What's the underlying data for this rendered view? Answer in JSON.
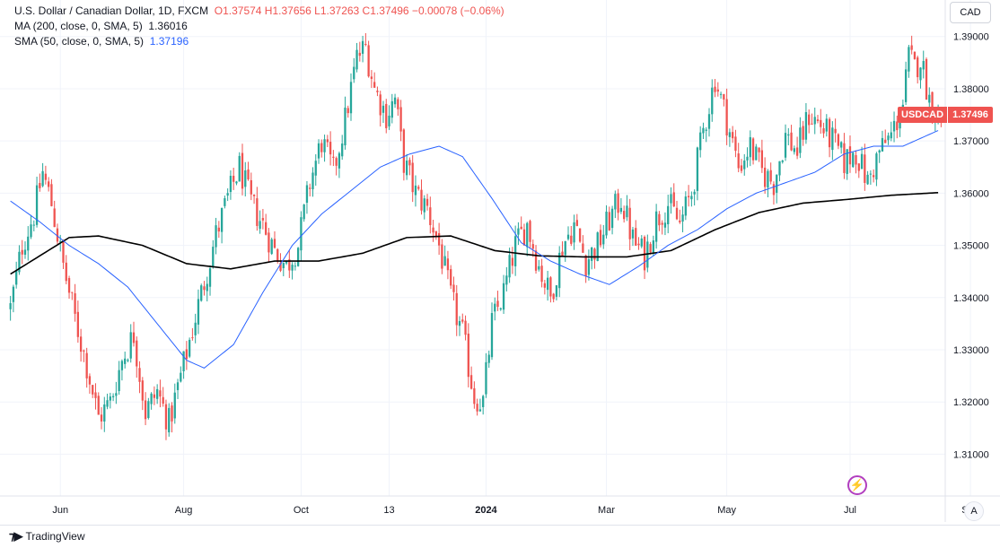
{
  "legend": {
    "symbol": "U.S. Dollar / Canadian Dollar, 1D, FXCM",
    "ohlc": "O1.37574  H1.37656  L1.37263  C1.37496  −0.00078 (−0.06%)",
    "ma200_label": "MA (200, close, 0, SMA, 5)",
    "ma200_value": "1.36016",
    "sma50_label": "SMA (50, close, 0, SMA, 5)",
    "sma50_value": "1.37196"
  },
  "currency_button": "CAD",
  "price_tag": {
    "symbol": "USDCAD",
    "value": "1.37496"
  },
  "auto_button": "A",
  "brand": "TradingView",
  "colors": {
    "up": "#26a69a",
    "down": "#ef5350",
    "ma200": "#000000",
    "sma50": "#2962ff"
  },
  "chart_data": {
    "type": "candlestick",
    "ylim": [
      1.302,
      1.397
    ],
    "y_ticks": [
      "1.31000",
      "1.32000",
      "1.33000",
      "1.34000",
      "1.35000",
      "1.36000",
      "1.37000",
      "1.38000",
      "1.39000"
    ],
    "x_ticks": [
      {
        "label": "Jun",
        "bold": false
      },
      {
        "label": "Aug",
        "bold": false
      },
      {
        "label": "Oct",
        "bold": false
      },
      {
        "label": "13",
        "bold": false
      },
      {
        "label": "2024",
        "bold": true
      },
      {
        "label": "Mar",
        "bold": false
      },
      {
        "label": "May",
        "bold": false
      },
      {
        "label": "Jul",
        "bold": false
      },
      {
        "label": "Sep",
        "bold": false
      }
    ],
    "close_path": [
      [
        0,
        1.338
      ],
      [
        4,
        1.35
      ],
      [
        8,
        1.356
      ],
      [
        11,
        1.364
      ],
      [
        14,
        1.358
      ],
      [
        18,
        1.346
      ],
      [
        22,
        1.336
      ],
      [
        26,
        1.327
      ],
      [
        30,
        1.317
      ],
      [
        34,
        1.32
      ],
      [
        38,
        1.328
      ],
      [
        42,
        1.333
      ],
      [
        46,
        1.318
      ],
      [
        50,
        1.322
      ],
      [
        54,
        1.316
      ],
      [
        58,
        1.325
      ],
      [
        62,
        1.334
      ],
      [
        66,
        1.343
      ],
      [
        70,
        1.352
      ],
      [
        74,
        1.359
      ],
      [
        78,
        1.365
      ],
      [
        82,
        1.358
      ],
      [
        86,
        1.354
      ],
      [
        90,
        1.349
      ],
      [
        94,
        1.346
      ],
      [
        98,
        1.35
      ],
      [
        102,
        1.362
      ],
      [
        106,
        1.37
      ],
      [
        110,
        1.364
      ],
      [
        114,
        1.374
      ],
      [
        118,
        1.386
      ],
      [
        121,
        1.388
      ],
      [
        124,
        1.38
      ],
      [
        128,
        1.375
      ],
      [
        131,
        1.378
      ],
      [
        134,
        1.366
      ],
      [
        138,
        1.36
      ],
      [
        142,
        1.357
      ],
      [
        146,
        1.35
      ],
      [
        150,
        1.34
      ],
      [
        154,
        1.333
      ],
      [
        158,
        1.321
      ],
      [
        161,
        1.32
      ],
      [
        164,
        1.335
      ],
      [
        168,
        1.341
      ],
      [
        172,
        1.35
      ],
      [
        176,
        1.354
      ],
      [
        180,
        1.346
      ],
      [
        184,
        1.34
      ],
      [
        188,
        1.35
      ],
      [
        192,
        1.354
      ],
      [
        196,
        1.347
      ],
      [
        200,
        1.35
      ],
      [
        204,
        1.355
      ],
      [
        208,
        1.359
      ],
      [
        212,
        1.351
      ],
      [
        216,
        1.348
      ],
      [
        220,
        1.355
      ],
      [
        224,
        1.358
      ],
      [
        228,
        1.354
      ],
      [
        232,
        1.36
      ],
      [
        236,
        1.372
      ],
      [
        240,
        1.382
      ],
      [
        244,
        1.374
      ],
      [
        248,
        1.365
      ],
      [
        252,
        1.369
      ],
      [
        256,
        1.364
      ],
      [
        260,
        1.362
      ],
      [
        264,
        1.371
      ],
      [
        268,
        1.368
      ],
      [
        272,
        1.375
      ],
      [
        276,
        1.373
      ],
      [
        280,
        1.37
      ],
      [
        284,
        1.366
      ],
      [
        288,
        1.368
      ],
      [
        292,
        1.362
      ],
      [
        296,
        1.368
      ],
      [
        300,
        1.371
      ],
      [
        304,
        1.377
      ],
      [
        306,
        1.386
      ],
      [
        308,
        1.384
      ],
      [
        310,
        1.386
      ],
      [
        313,
        1.378
      ],
      [
        316,
        1.375
      ]
    ],
    "ma200_path": [
      [
        0,
        1.3445
      ],
      [
        20,
        1.3515
      ],
      [
        30,
        1.3518
      ],
      [
        45,
        1.35
      ],
      [
        60,
        1.3465
      ],
      [
        75,
        1.3455
      ],
      [
        90,
        1.347
      ],
      [
        105,
        1.347
      ],
      [
        120,
        1.3485
      ],
      [
        135,
        1.3515
      ],
      [
        150,
        1.3518
      ],
      [
        165,
        1.349
      ],
      [
        180,
        1.348
      ],
      [
        195,
        1.3478
      ],
      [
        210,
        1.3478
      ],
      [
        225,
        1.349
      ],
      [
        240,
        1.353
      ],
      [
        255,
        1.3563
      ],
      [
        270,
        1.3581
      ],
      [
        285,
        1.3588
      ],
      [
        300,
        1.3596
      ],
      [
        316,
        1.3601
      ]
    ],
    "sma50_path": [
      [
        0,
        1.3585
      ],
      [
        10,
        1.3545
      ],
      [
        20,
        1.35
      ],
      [
        30,
        1.3465
      ],
      [
        40,
        1.342
      ],
      [
        50,
        1.335
      ],
      [
        60,
        1.328
      ],
      [
        66,
        1.3265
      ],
      [
        76,
        1.331
      ],
      [
        86,
        1.341
      ],
      [
        96,
        1.35
      ],
      [
        106,
        1.356
      ],
      [
        116,
        1.3605
      ],
      [
        126,
        1.365
      ],
      [
        136,
        1.3675
      ],
      [
        146,
        1.369
      ],
      [
        154,
        1.367
      ],
      [
        164,
        1.359
      ],
      [
        174,
        1.3505
      ],
      [
        184,
        1.347
      ],
      [
        194,
        1.3445
      ],
      [
        204,
        1.3425
      ],
      [
        214,
        1.346
      ],
      [
        224,
        1.35
      ],
      [
        234,
        1.353
      ],
      [
        244,
        1.357
      ],
      [
        254,
        1.36
      ],
      [
        264,
        1.362
      ],
      [
        274,
        1.364
      ],
      [
        284,
        1.3675
      ],
      [
        294,
        1.369
      ],
      [
        304,
        1.369
      ],
      [
        310,
        1.3705
      ],
      [
        316,
        1.372
      ]
    ],
    "x_tick_bars": [
      17,
      59,
      99,
      129,
      162,
      203,
      244,
      286,
      327
    ]
  }
}
